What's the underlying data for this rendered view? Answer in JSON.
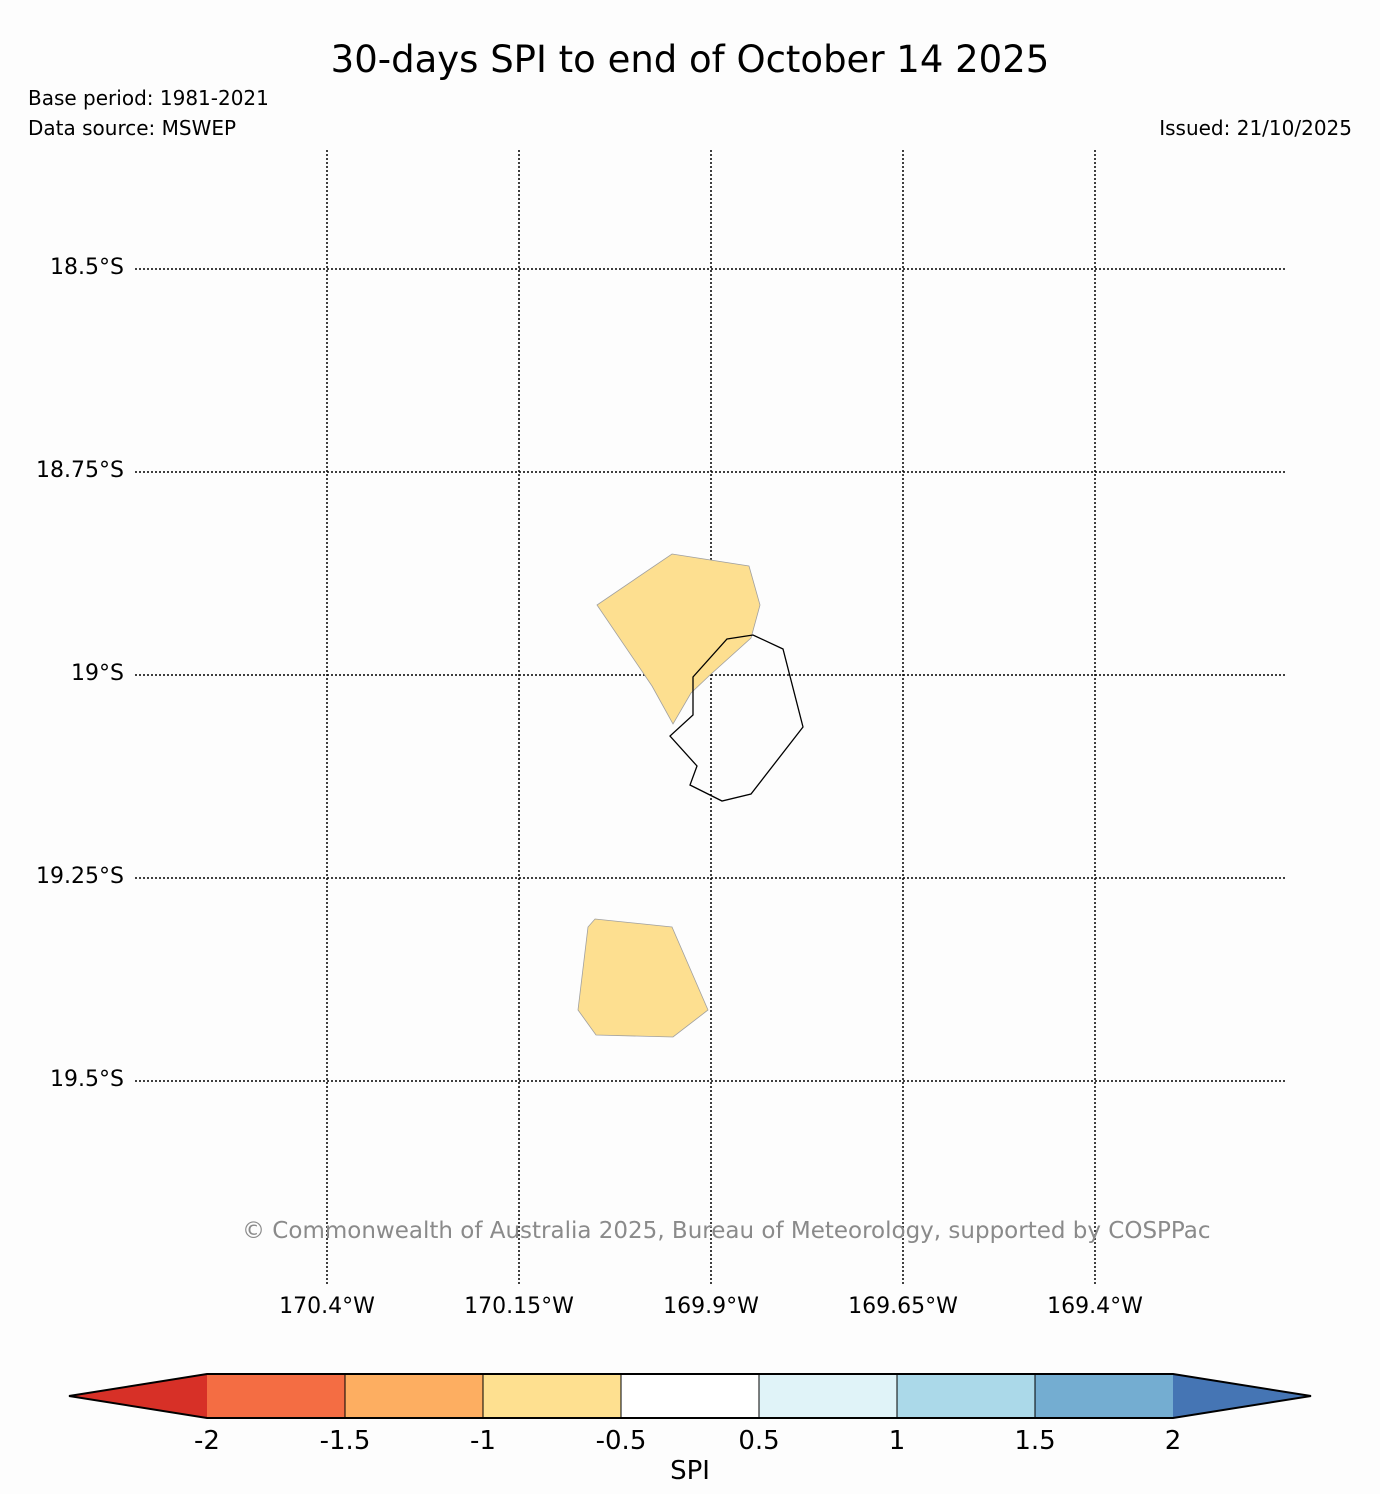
{
  "title": "30-days SPI to end of October 14 2025",
  "base_period": "Base period: 1981-2021",
  "data_source": "Data source: MSWEP",
  "issued": "Issued: 21/10/2025",
  "copyright": "© Commonwealth of Australia 2025, Bureau of Meteorology, supported by COSPPac",
  "map": {
    "lat_labels": [
      "18.5°S",
      "18.75°S",
      "19°S",
      "19.25°S",
      "19.5°S"
    ],
    "lon_labels": [
      "170.4°W",
      "170.15°W",
      "169.9°W",
      "169.65°W",
      "169.4°W"
    ],
    "gridlines": "dotted",
    "island_outline_color": "#000000",
    "anomaly_fill_color": "#fddf90",
    "anomaly_fill_category": "-1 to -0.5"
  },
  "colorbar": {
    "label": "SPI",
    "ticks": [
      "-2",
      "-1.5",
      "-1",
      "-0.5",
      "0.5",
      "1",
      "1.5",
      "2"
    ],
    "extend": "both",
    "colors": [
      "#d73027",
      "#f46d43",
      "#fdae61",
      "#fee090",
      "#ffffff",
      "#e0f3f8",
      "#abd9e9",
      "#74add1",
      "#4575b4"
    ]
  }
}
